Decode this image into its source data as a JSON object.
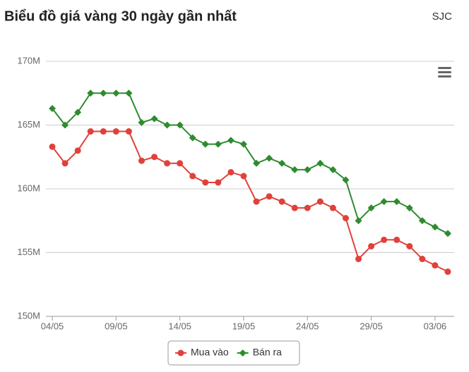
{
  "chart_data": {
    "type": "line",
    "title": "Biểu đồ giá vàng 30 ngày gần nhất",
    "subtitle": "SJC",
    "categories": [
      "04/05",
      null,
      null,
      null,
      null,
      "09/05",
      null,
      null,
      null,
      null,
      "14/05",
      null,
      null,
      null,
      null,
      "19/05",
      null,
      null,
      null,
      null,
      "24/05",
      null,
      null,
      null,
      null,
      "29/05",
      null,
      null,
      null,
      null,
      "03/06",
      null
    ],
    "series": [
      {
        "name": "Mua vào",
        "color": "#e0413a",
        "values": [
          163.3,
          162.0,
          163.0,
          164.5,
          164.5,
          164.5,
          164.5,
          162.2,
          162.5,
          162.0,
          162.0,
          161.0,
          160.5,
          160.5,
          161.3,
          161.0,
          159.0,
          159.4,
          159.0,
          158.5,
          158.5,
          159.0,
          158.5,
          157.7,
          154.5,
          155.5,
          156.0,
          156.0,
          155.5,
          154.5,
          154.0,
          153.5
        ]
      },
      {
        "name": "Bán ra",
        "color": "#2e8b2e",
        "values": [
          166.3,
          165.0,
          166.0,
          167.5,
          167.5,
          167.5,
          167.5,
          165.2,
          165.5,
          165.0,
          165.0,
          164.0,
          163.5,
          163.5,
          163.8,
          163.5,
          162.0,
          162.4,
          162.0,
          161.5,
          161.5,
          162.0,
          161.5,
          160.7,
          157.5,
          158.5,
          159.0,
          159.0,
          158.5,
          157.5,
          157.0,
          156.5
        ]
      }
    ],
    "ylim": [
      150,
      170
    ],
    "yticks": [
      {
        "value": 150,
        "label": "150M"
      },
      {
        "value": 155,
        "label": "155M"
      },
      {
        "value": 160,
        "label": "160M"
      },
      {
        "value": 165,
        "label": "165M"
      },
      {
        "value": 170,
        "label": "170M"
      }
    ],
    "grid": true,
    "legend": "bottom"
  }
}
